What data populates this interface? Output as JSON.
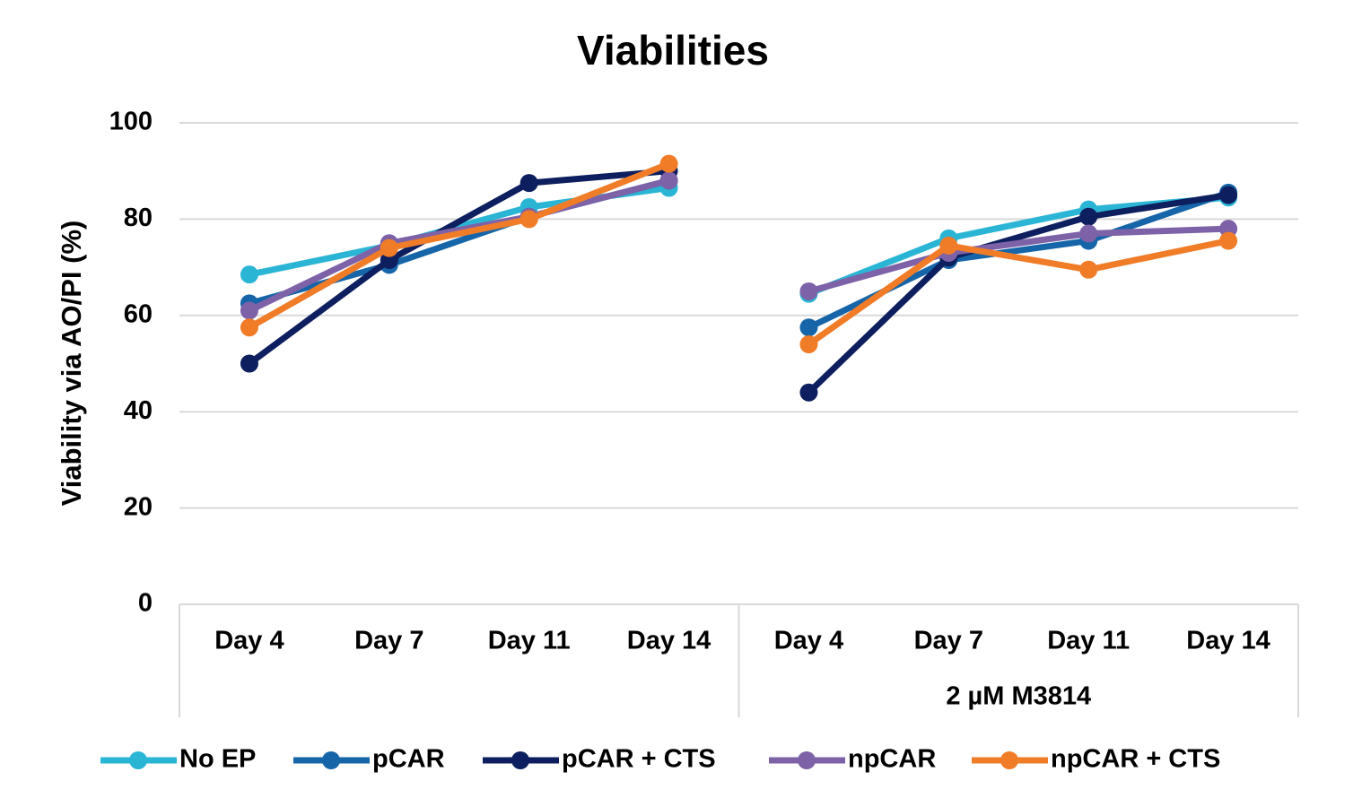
{
  "chart_data": {
    "type": "line",
    "title": "Viabilities",
    "y_label": "Viability via AO/PI (%)",
    "categories": [
      "Day 4",
      "Day 7",
      "Day 11",
      "Day 14",
      "Day 4",
      "Day 7",
      "Day 11",
      "Day 14"
    ],
    "group_labels": [
      null,
      "2 µM M3814"
    ],
    "ylim": [
      0,
      100
    ],
    "yticks": [
      0,
      20,
      40,
      60,
      80,
      100
    ],
    "grid": true,
    "legend": "bottom",
    "series": [
      {
        "name": "No EP",
        "color": "#2ab5d5",
        "values": [
          68.5,
          74.5,
          82.5,
          86.5,
          64.5,
          76,
          82,
          84.5
        ]
      },
      {
        "name": "pCAR",
        "color": "#1565a8",
        "values": [
          62.5,
          70.5,
          80.5,
          88,
          57.5,
          71.5,
          75.5,
          85.5
        ]
      },
      {
        "name": "pCAR + CTS",
        "color": "#0d1f5e",
        "values": [
          50,
          71.5,
          87.5,
          90,
          44,
          72,
          80.5,
          85
        ]
      },
      {
        "name": "npCAR",
        "color": "#7d62a8",
        "values": [
          61,
          75,
          80.5,
          88,
          65,
          73,
          77,
          78
        ]
      },
      {
        "name": "npCAR + CTS",
        "color": "#f07c28",
        "values": [
          57.5,
          74,
          80,
          91.5,
          54,
          74.5,
          69.5,
          75.5
        ]
      }
    ]
  }
}
